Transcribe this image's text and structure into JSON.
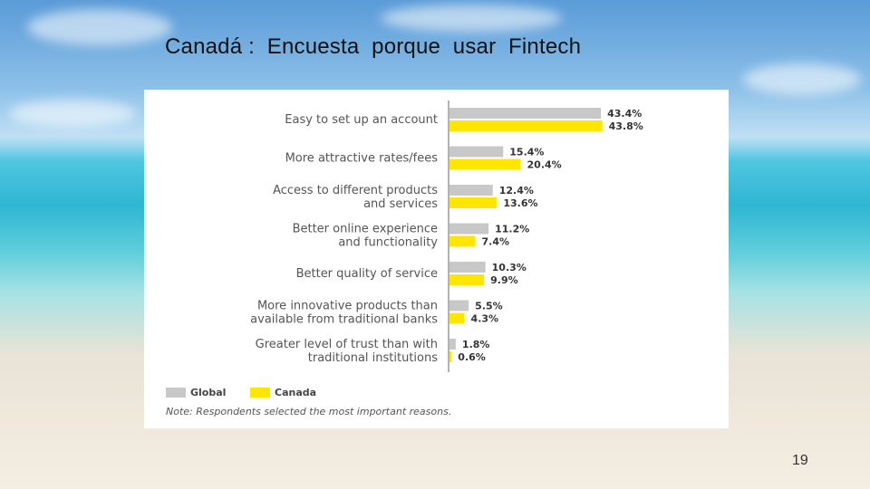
{
  "slide": {
    "title": "Canadá :  Encuesta  porque  usar  Fintech",
    "page_number": "19"
  },
  "chart_data": {
    "type": "bar",
    "orientation": "horizontal",
    "categories": [
      [
        "Easy to set up an account"
      ],
      [
        "More attractive rates/fees"
      ],
      [
        "Access to different products",
        "and services"
      ],
      [
        "Better online experience",
        "and functionality"
      ],
      [
        "Better quality of service"
      ],
      [
        "More innovative products than",
        "available from traditional banks"
      ],
      [
        "Greater level of trust than with",
        "traditional institutions"
      ]
    ],
    "series": [
      {
        "name": "Global",
        "color": "#c8c8c8",
        "values": [
          43.4,
          15.4,
          12.4,
          11.2,
          10.3,
          5.5,
          1.8
        ]
      },
      {
        "name": "Canada",
        "color": "#ffe600",
        "values": [
          43.8,
          20.4,
          13.6,
          7.4,
          9.9,
          4.3,
          0.6
        ]
      }
    ],
    "value_suffix": "%",
    "legend_position": "bottom-left",
    "note": "Note:  Respondents selected the most important reasons."
  }
}
